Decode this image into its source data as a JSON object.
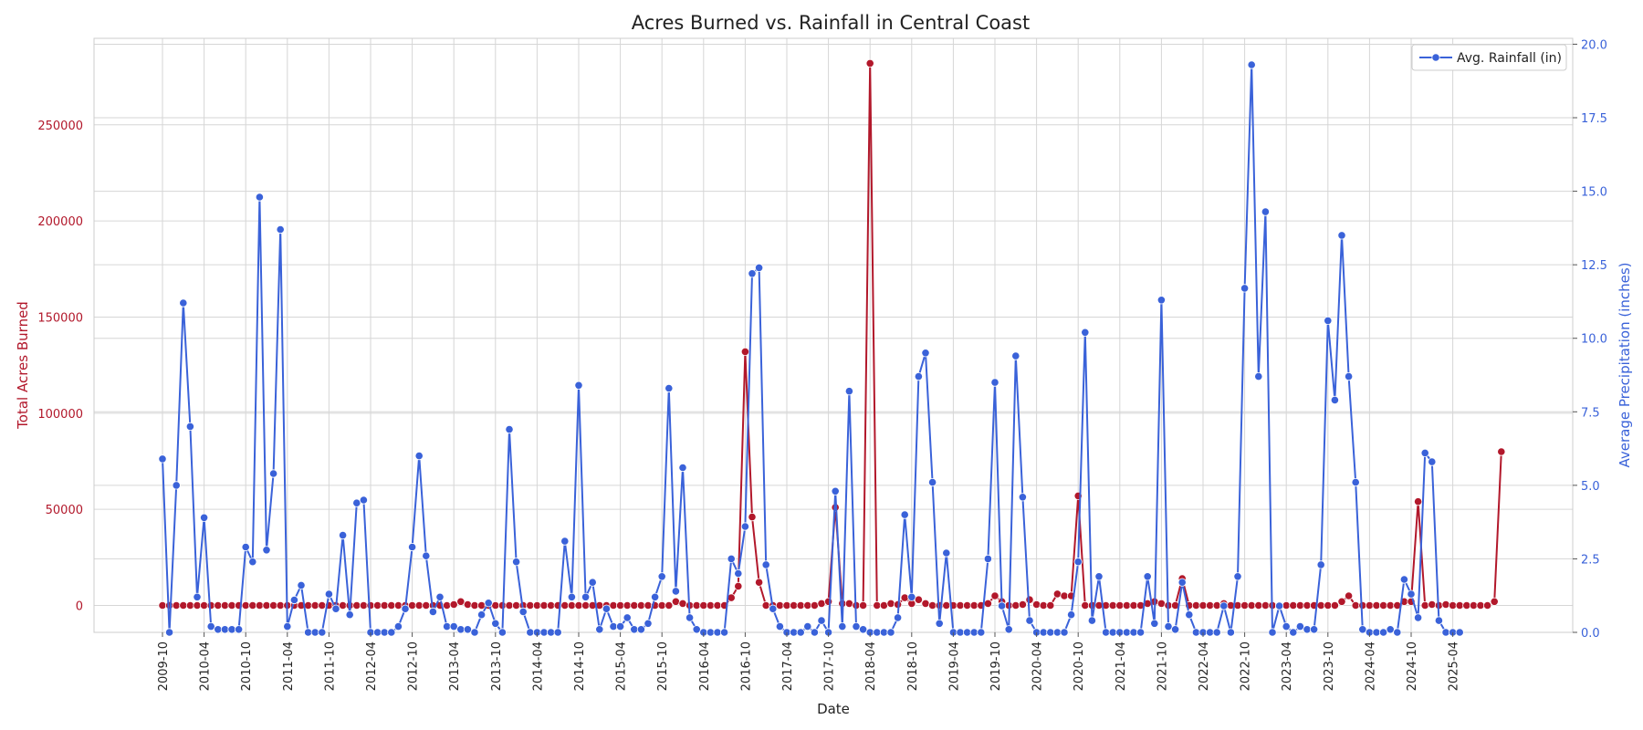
{
  "chart_data": {
    "type": "line",
    "title": "Acres Burned vs. Rainfall in Central Coast",
    "xlabel": "Date",
    "ylabel_left": "Total Acres Burned",
    "ylabel_right": "Average Precipitation (inches)",
    "x_start": "2009-10",
    "x_ticks": [
      "2009-10",
      "2010-04",
      "2010-10",
      "2011-04",
      "2011-10",
      "2012-04",
      "2012-10",
      "2013-04",
      "2013-10",
      "2014-04",
      "2014-10",
      "2015-04",
      "2015-10",
      "2016-04",
      "2016-10",
      "2017-04",
      "2017-10",
      "2018-04",
      "2018-10",
      "2019-04",
      "2019-10",
      "2020-04",
      "2020-10",
      "2021-04",
      "2021-10",
      "2022-04",
      "2022-10",
      "2023-04",
      "2023-10",
      "2024-04",
      "2024-10",
      "2025-04"
    ],
    "y_left_ticks": [
      0,
      50000,
      100000,
      150000,
      200000,
      250000
    ],
    "y_left_range": [
      -14000,
      295000
    ],
    "y_right_ticks": [
      0.0,
      2.5,
      5.0,
      7.5,
      10.0,
      12.5,
      15.0,
      17.5,
      20.0
    ],
    "y_right_range": [
      0.0,
      20.2
    ],
    "grid": true,
    "legend_position": "top-right",
    "colors": {
      "acres": "#b2182b",
      "rain": "#3a62d9",
      "left_axis_text": "#b2182b",
      "right_axis_text": "#3a62d9",
      "grid": "#d6d6d6"
    },
    "legend": [
      {
        "name": "Avg. Rainfall (in)",
        "color": "#3a62d9"
      }
    ],
    "series": [
      {
        "name": "Total Acres Burned",
        "axis": "left",
        "color": "#b2182b",
        "values": [
          0,
          0,
          0,
          0,
          0,
          0,
          0,
          0,
          0,
          0,
          0,
          0,
          0,
          0,
          0,
          0,
          0,
          0,
          0,
          0,
          0,
          0,
          0,
          0,
          0,
          0,
          0,
          0,
          0,
          0,
          0,
          0,
          0,
          0,
          0,
          0,
          0,
          0,
          0,
          0,
          0,
          0,
          500,
          2000,
          500,
          0,
          0,
          0,
          0,
          0,
          0,
          0,
          0,
          0,
          0,
          0,
          0,
          0,
          0,
          0,
          0,
          0,
          0,
          0,
          0,
          0,
          0,
          0,
          0,
          0,
          0,
          0,
          0,
          0,
          2000,
          1000,
          0,
          0,
          0,
          0,
          0,
          0,
          4000,
          10000,
          132000,
          46000,
          12000,
          0,
          0,
          0,
          0,
          0,
          0,
          0,
          0,
          1000,
          2000,
          51000,
          1000,
          1000,
          0,
          0,
          282000,
          0,
          0,
          1000,
          500,
          4000,
          1000,
          3000,
          1000,
          0,
          0,
          0,
          0,
          0,
          0,
          0,
          0,
          1000,
          5000,
          2000,
          0,
          0,
          500,
          3000,
          500,
          0,
          0,
          6000,
          5000,
          5000,
          57000,
          0,
          0,
          0,
          0,
          0,
          0,
          0,
          0,
          0,
          1000,
          2000,
          1000,
          0,
          0,
          14000,
          0,
          0,
          0,
          0,
          0,
          1000,
          0,
          0,
          0,
          0,
          0,
          0,
          0,
          0,
          0,
          0,
          0,
          0,
          0,
          0,
          0,
          0,
          2000,
          5000,
          0,
          0,
          0,
          0,
          0,
          0,
          0,
          2000,
          2000,
          54000,
          0,
          500,
          0,
          500,
          0,
          0,
          0,
          0,
          0,
          0,
          2000,
          80000
        ]
      },
      {
        "name": "Average Precipitation (inches)",
        "axis": "right",
        "color": "#3a62d9",
        "values": [
          5.9,
          0.0,
          5.0,
          11.2,
          7.0,
          1.2,
          3.9,
          0.2,
          0.1,
          0.1,
          0.1,
          0.1,
          2.9,
          2.4,
          14.8,
          2.8,
          5.4,
          13.7,
          0.2,
          1.1,
          1.6,
          0.0,
          0.0,
          0.0,
          1.3,
          0.8,
          3.3,
          0.6,
          4.4,
          4.5,
          0.0,
          0.0,
          0.0,
          0.0,
          0.2,
          0.8,
          2.9,
          6.0,
          2.6,
          0.7,
          1.2,
          0.2,
          0.2,
          0.1,
          0.1,
          0.0,
          0.6,
          1.0,
          0.3,
          0.0,
          6.9,
          2.4,
          0.7,
          0.0,
          0.0,
          0.0,
          0.0,
          0.0,
          3.1,
          1.2,
          8.4,
          1.2,
          1.7,
          0.1,
          0.8,
          0.2,
          0.2,
          0.5,
          0.1,
          0.1,
          0.3,
          1.2,
          1.9,
          8.3,
          1.4,
          5.6,
          0.5,
          0.1,
          0.0,
          0.0,
          0.0,
          0.0,
          2.5,
          2.0,
          3.6,
          12.2,
          12.4,
          2.3,
          0.8,
          0.2,
          0.0,
          0.0,
          0.0,
          0.2,
          0.0,
          0.4,
          0.0,
          4.8,
          0.2,
          8.2,
          0.2,
          0.1,
          0.0,
          0.0,
          0.0,
          0.0,
          0.5,
          4.0,
          1.2,
          8.7,
          9.5,
          5.1,
          0.3,
          2.7,
          0.0,
          0.0,
          0.0,
          0.0,
          0.0,
          2.5,
          8.5,
          0.9,
          0.1,
          9.4,
          4.6,
          0.4,
          0.0,
          0.0,
          0.0,
          0.0,
          0.0,
          0.6,
          2.4,
          10.2,
          0.4,
          1.9,
          0.0,
          0.0,
          0.0,
          0.0,
          0.0,
          0.0,
          1.9,
          0.3,
          11.3,
          0.2,
          0.1,
          1.7,
          0.6,
          0.0,
          0.0,
          0.0,
          0.0,
          0.9,
          0.0,
          1.9,
          11.7,
          19.3,
          8.7,
          14.3,
          0.0,
          0.9,
          0.2,
          0.0,
          0.2,
          0.1,
          0.1,
          2.3,
          10.6,
          7.9,
          13.5,
          8.7,
          5.1,
          0.1,
          0.0,
          0.0,
          0.0,
          0.1,
          0.0,
          1.8,
          1.3,
          0.5,
          6.1,
          5.8,
          0.4,
          0.0,
          0.0,
          0.0
        ]
      }
    ]
  }
}
